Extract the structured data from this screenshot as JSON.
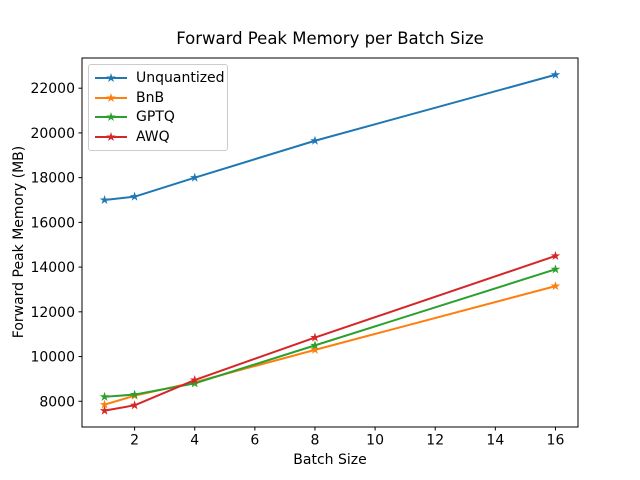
{
  "figure": {
    "background": "#ffffff",
    "text_color": "#000000",
    "spine_color": "#000000"
  },
  "chart_data": {
    "type": "line",
    "title": "Forward Peak Memory per Batch Size",
    "xlabel": "Batch Size",
    "ylabel": "Forward Peak Memory (MB)",
    "x": [
      1,
      2,
      4,
      8,
      16
    ],
    "series": [
      {
        "name": "Unquantized",
        "color": "#1f77b4",
        "marker": "star",
        "values": [
          17000,
          17150,
          18000,
          19650,
          22600
        ]
      },
      {
        "name": "BnB",
        "color": "#ff7f0e",
        "marker": "star",
        "values": [
          7850,
          8250,
          8850,
          10300,
          13150
        ]
      },
      {
        "name": "GPTQ",
        "color": "#2ca02c",
        "marker": "star",
        "values": [
          8200,
          8300,
          8800,
          10500,
          13900
        ]
      },
      {
        "name": "AWQ",
        "color": "#d62728",
        "marker": "star",
        "values": [
          7580,
          7820,
          8950,
          10850,
          14500
        ]
      }
    ],
    "xticks": [
      2,
      4,
      6,
      8,
      10,
      12,
      14,
      16
    ],
    "yticks": [
      8000,
      10000,
      12000,
      14000,
      16000,
      18000,
      20000,
      22000
    ],
    "xlim": [
      0.25,
      16.75
    ],
    "ylim": [
      6850,
      23350
    ],
    "grid": false,
    "legend_position": "upper left"
  }
}
